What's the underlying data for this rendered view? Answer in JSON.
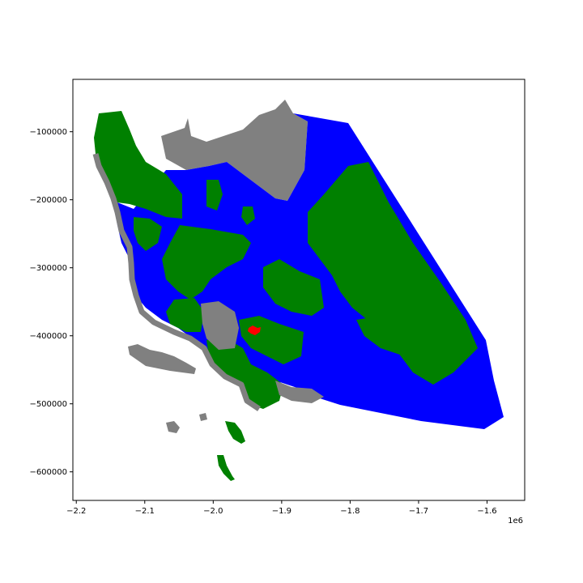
{
  "figure": {
    "x_offset_text": "1e6"
  },
  "colors": {
    "democratic_fill": "#0000ff",
    "republican_fill": "#008000",
    "no_data_fill": "#808080",
    "highlight_fill": "#ff0000",
    "background": "#ffffff",
    "frame": "#000000"
  },
  "axes": {
    "x_ticks": [
      {
        "value": -2200000,
        "label": "−2.2"
      },
      {
        "value": -2100000,
        "label": "−2.1"
      },
      {
        "value": -2000000,
        "label": "−2.0"
      },
      {
        "value": -1900000,
        "label": "−1.9"
      },
      {
        "value": -1800000,
        "label": "−1.8"
      },
      {
        "value": -1700000,
        "label": "−1.7"
      },
      {
        "value": -1600000,
        "label": "−1.6"
      }
    ],
    "y_ticks": [
      {
        "value": -100000,
        "label": "−100000"
      },
      {
        "value": -200000,
        "label": "−200000"
      },
      {
        "value": -300000,
        "label": "−300000"
      },
      {
        "value": -400000,
        "label": "−400000"
      },
      {
        "value": -500000,
        "label": "−500000"
      },
      {
        "value": -600000,
        "label": "−600000"
      }
    ],
    "xlim": [
      -2205000,
      -1545000
    ],
    "ylim": [
      -642000,
      -23000
    ]
  },
  "chart_data": {
    "type": "map",
    "x_offset_text": "1e6",
    "xlim": [
      -2205000,
      -1545000
    ],
    "ylim": [
      -642000,
      -23000
    ],
    "x_ticks": [
      -2200000,
      -2100000,
      -2000000,
      -1900000,
      -1800000,
      -1700000,
      -1600000
    ],
    "y_ticks": [
      -100000,
      -200000,
      -300000,
      -400000,
      -500000,
      -600000
    ],
    "grid": false,
    "legend": "none"
  }
}
